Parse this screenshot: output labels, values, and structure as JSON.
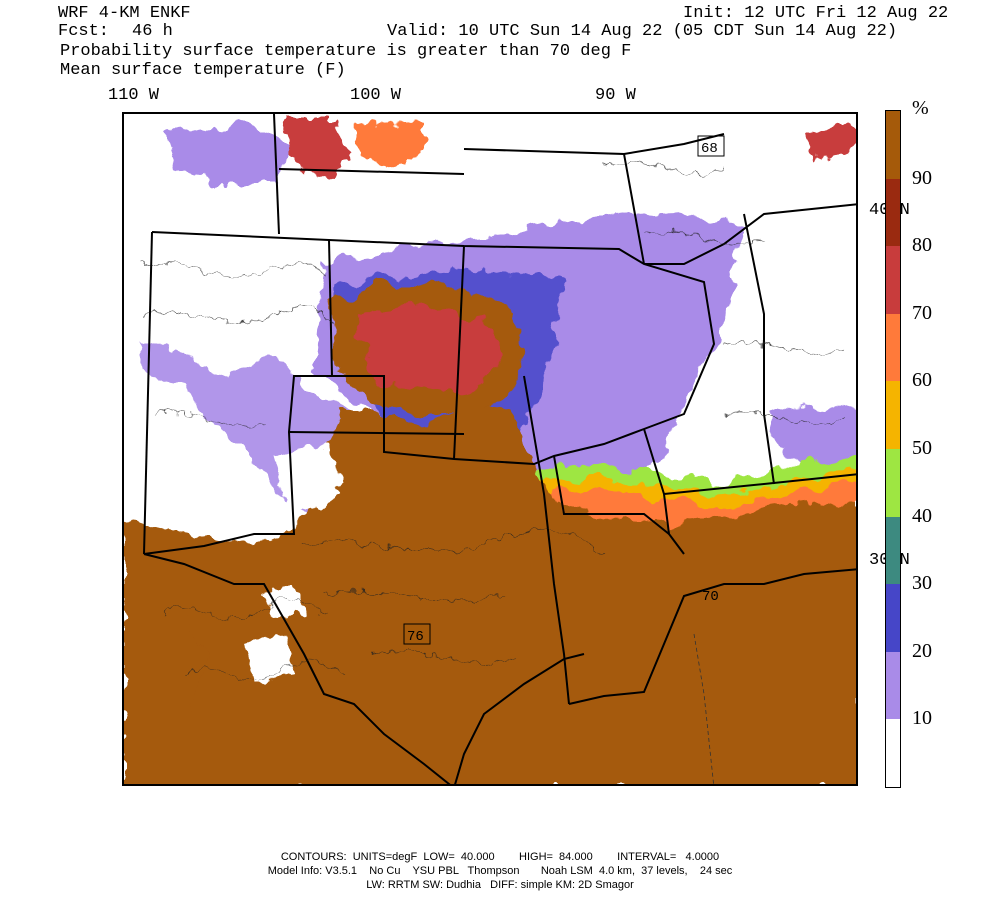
{
  "header": {
    "model": "WRF 4-KM ENKF",
    "init": "Init: 12 UTC Fri 12 Aug 22",
    "fcst_label": "Fcst:",
    "fcst_value": "46 h",
    "valid": "Valid: 10 UTC Sun 14 Aug 22 (05 CDT Sun 14 Aug 22)",
    "field1": "Probability surface temperature is greater than 70 deg F",
    "field2": "Mean surface temperature (F)"
  },
  "axes": {
    "lon_labels": [
      "110 W",
      "100 W",
      "90 W"
    ],
    "lat_labels": [
      "40 N",
      "30 N"
    ]
  },
  "colorbar": {
    "unit": "%",
    "levels": [
      "10",
      "20",
      "30",
      "40",
      "50",
      "60",
      "70",
      "80",
      "90"
    ],
    "colors": [
      "#ffffff",
      "#a98be8",
      "#4646c8",
      "#3d8a80",
      "#9ee642",
      "#f5b400",
      "#ff7a3a",
      "#c83c3c",
      "#9a2a10",
      "#a55a0a"
    ]
  },
  "annotations": {
    "low_contour_label": "76",
    "ne_label": "68",
    "gulf_label": "70"
  },
  "footer": {
    "line1": "CONTOURS:  UNITS=degF  LOW=  40.000        HIGH=  84.000        INTERVAL=   4.0000",
    "line2": "Model Info: V3.5.1    No Cu    YSU PBL   Thompson       Noah LSM  4.0 km,  37 levels,    24 sec",
    "line3": "LW: RRTM SW: Dudhia   DIFF: simple KM: 2D Smagor"
  }
}
